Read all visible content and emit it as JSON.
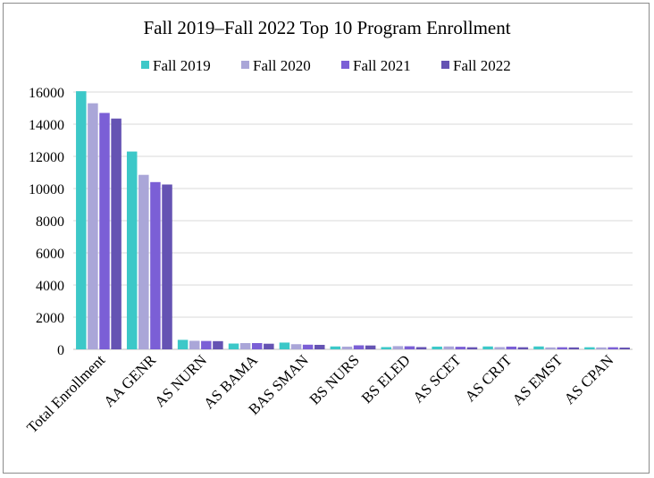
{
  "chart_data": {
    "type": "bar",
    "title": "Fall 2019–Fall 2022 Top 10 Program Enrollment",
    "xlabel": "",
    "ylabel": "",
    "ylim": [
      0,
      16000
    ],
    "yticks": [
      0,
      2000,
      4000,
      6000,
      8000,
      10000,
      12000,
      14000,
      16000
    ],
    "grid": true,
    "legend_position": "top",
    "categories": [
      "Total Enrollment",
      "AA GENR",
      "AS NURN",
      "AS BAMA",
      "BAS SMAN",
      "BS NURS",
      "BS ELED",
      "AS SCET",
      "AS CRJT",
      "AS EMST",
      "AS CPAN"
    ],
    "series": [
      {
        "name": "Fall 2019",
        "color": "#3cc8c8",
        "values": [
          16050,
          12300,
          590,
          360,
          420,
          180,
          140,
          170,
          180,
          180,
          130
        ]
      },
      {
        "name": "Fall 2020",
        "color": "#aaa6d8",
        "values": [
          15300,
          10850,
          530,
          390,
          320,
          170,
          200,
          180,
          140,
          120,
          120
        ]
      },
      {
        "name": "Fall 2021",
        "color": "#7b5fd6",
        "values": [
          14700,
          10400,
          520,
          390,
          290,
          250,
          190,
          160,
          170,
          130,
          130
        ]
      },
      {
        "name": "Fall 2022",
        "color": "#6553b3",
        "values": [
          14350,
          10250,
          510,
          350,
          280,
          240,
          140,
          130,
          130,
          120,
          110
        ]
      }
    ]
  }
}
